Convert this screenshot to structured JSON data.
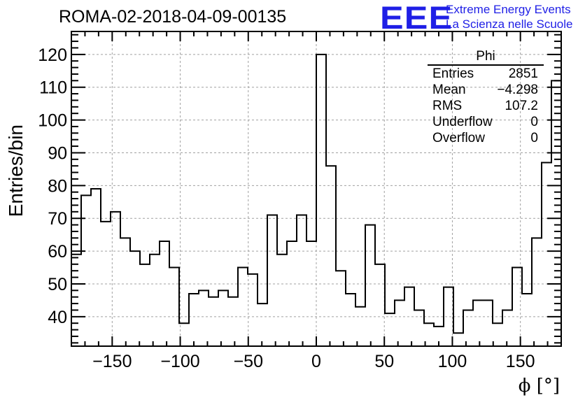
{
  "title": "ROMA-02-2018-04-09-00135",
  "logo": {
    "text": "EEE",
    "line1": "Extreme Energy Events",
    "line2": "La Scienza nelle Scuole",
    "color": "#1f1fe6"
  },
  "stats_box": {
    "title": "Phi",
    "rows": [
      {
        "label": "Entries",
        "value": "2851"
      },
      {
        "label": "Mean",
        "value": "−4.298"
      },
      {
        "label": "RMS",
        "value": "107.2"
      },
      {
        "label": "Underflow",
        "value": "0"
      },
      {
        "label": "Overflow",
        "value": "0"
      }
    ]
  },
  "chart_data": {
    "type": "histogram",
    "title": "ROMA-02-2018-04-09-00135",
    "xlabel": "ϕ [°]",
    "ylabel": "Entries/bin",
    "xlim": [
      -180,
      180
    ],
    "ylim": [
      31,
      127
    ],
    "bin_width": 7.2,
    "bin_edges_start": -180,
    "grid": true,
    "line_color": "#000000",
    "x_ticks": [
      -150,
      -100,
      -50,
      0,
      50,
      100,
      150
    ],
    "x_tick_labels": [
      "−150",
      "−100",
      "−50",
      "0",
      "50",
      "100",
      "150"
    ],
    "y_ticks": [
      40,
      50,
      60,
      70,
      80,
      90,
      100,
      110,
      120
    ],
    "values": [
      59,
      77,
      79,
      69,
      72,
      64,
      60,
      56,
      59,
      63,
      55,
      38,
      47,
      48,
      46,
      48,
      46,
      55,
      53,
      44,
      71,
      59,
      63,
      71,
      63,
      120,
      86,
      54,
      47,
      43,
      68,
      56,
      41,
      45,
      49,
      42,
      38,
      37,
      49,
      35,
      42,
      45,
      45,
      38,
      42,
      55,
      47,
      64,
      87,
      112
    ]
  }
}
